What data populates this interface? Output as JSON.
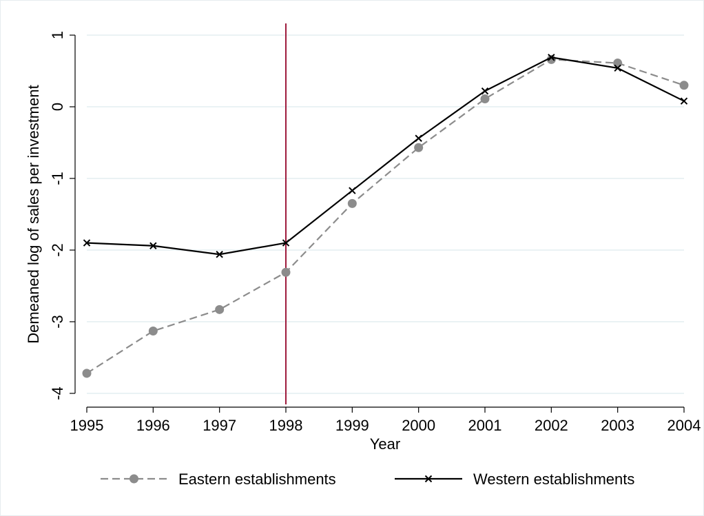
{
  "chart_data": {
    "type": "line",
    "title": "",
    "xlabel": "Year",
    "ylabel": "Demeaned log of sales per investment",
    "x": [
      1995,
      1996,
      1997,
      1998,
      1999,
      2000,
      2001,
      2002,
      2003,
      2004
    ],
    "x_tick_labels": [
      "1995",
      "1996",
      "1997",
      "1998",
      "1999",
      "2000",
      "2001",
      "2002",
      "2003",
      "2004"
    ],
    "xlim": [
      1995,
      2004
    ],
    "y_ticks": [
      1,
      0,
      -1,
      -2,
      -3,
      -4
    ],
    "y_tick_labels": [
      "1",
      "0",
      "-1",
      "-2",
      "-3",
      "-4"
    ],
    "ylim": [
      -4.1,
      1.15
    ],
    "grid": "horizontal",
    "reference_line": {
      "x": 1998,
      "color": "#9e1b3c"
    },
    "legend_position": "bottom",
    "series": [
      {
        "name": "Eastern establishments",
        "values": [
          -3.72,
          -3.13,
          -2.83,
          -2.31,
          -1.35,
          -0.57,
          0.11,
          0.66,
          0.61,
          0.3
        ],
        "color": "#8c8c8c",
        "line_style": "dashed",
        "marker": "circle"
      },
      {
        "name": "Western establishments",
        "values": [
          -1.9,
          -1.94,
          -2.06,
          -1.9,
          -1.17,
          -0.44,
          0.22,
          0.69,
          0.54,
          0.08
        ],
        "color": "#000000",
        "line_style": "solid",
        "marker": "x"
      }
    ]
  }
}
